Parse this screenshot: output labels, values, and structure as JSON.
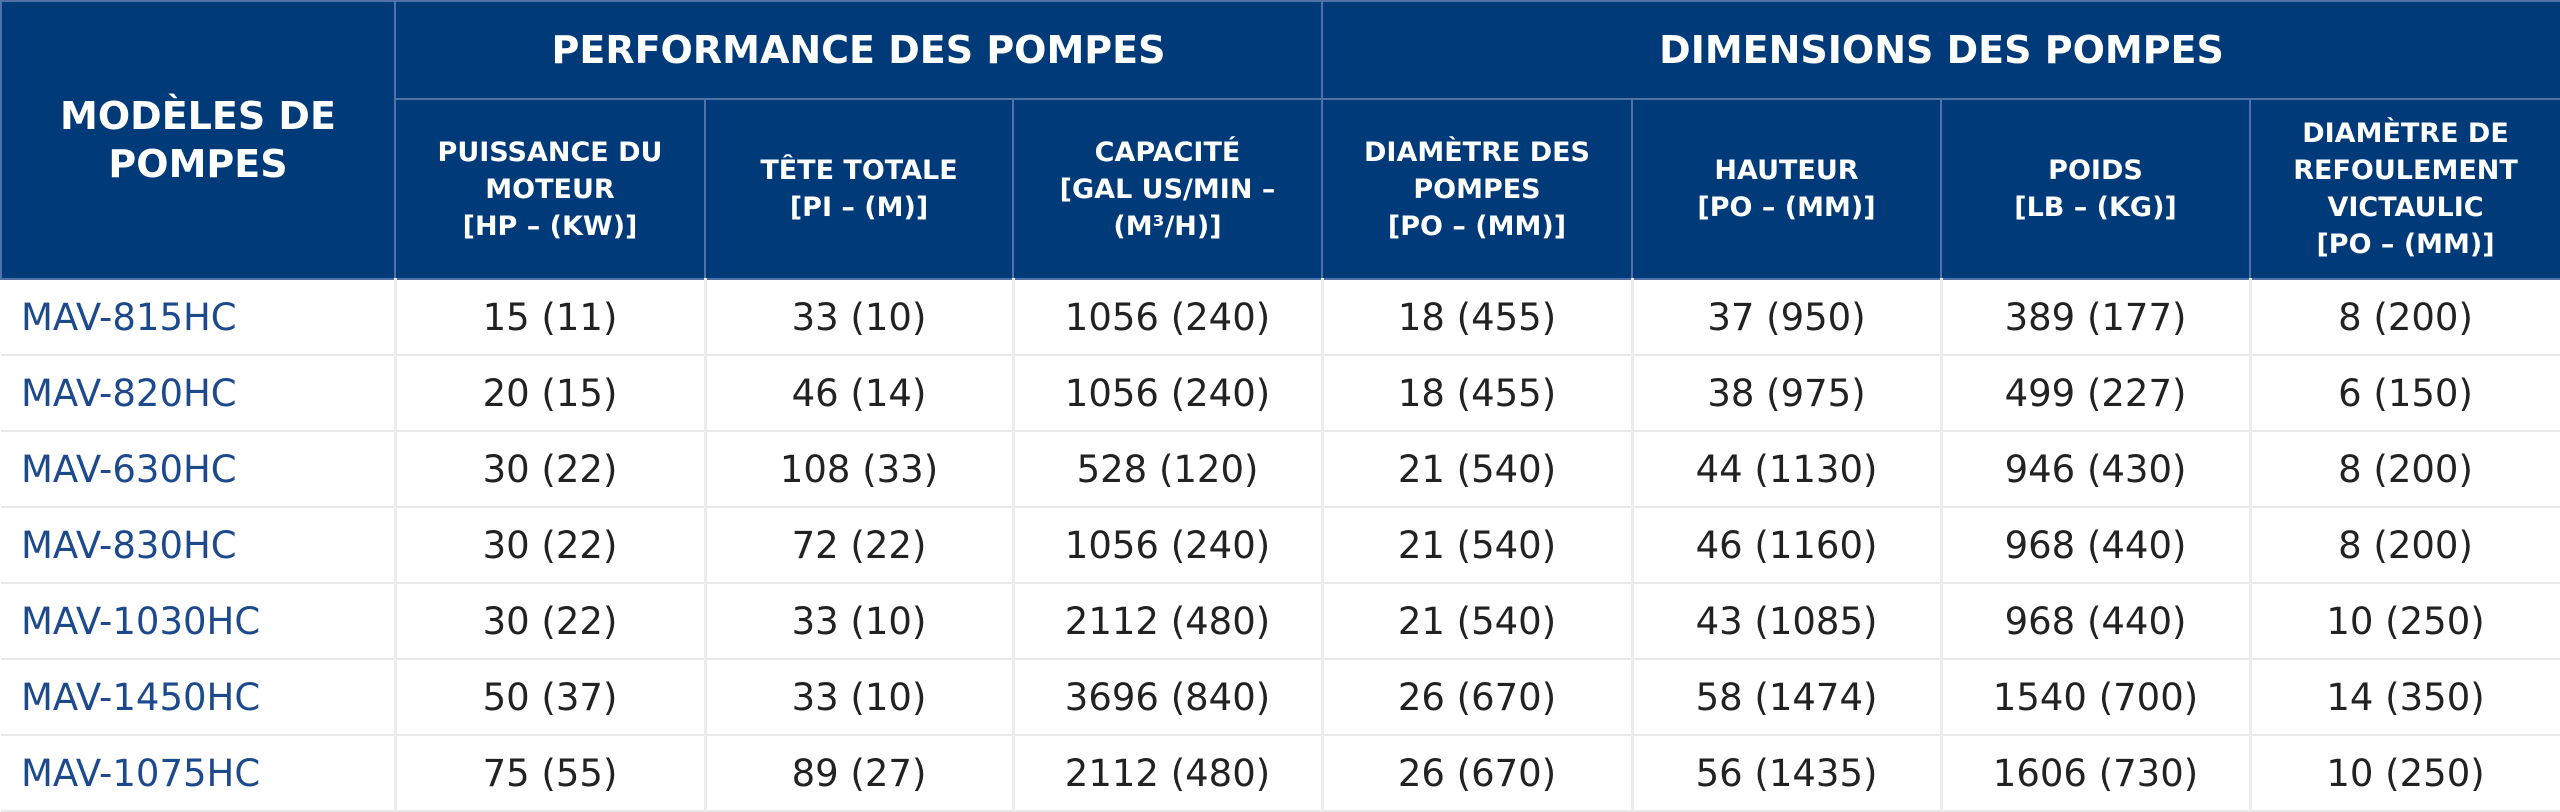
{
  "header": {
    "model_column": [
      "MODÈLES DE",
      "POMPES"
    ],
    "groups": [
      "PERFORMANCE DES POMPES",
      "DIMENSIONS DES POMPES"
    ],
    "columns": [
      [
        "PUISSANCE DU",
        "MOTEUR",
        "[HP – (KW)]"
      ],
      [
        "TÊTE TOTALE",
        "[PI – (M)]"
      ],
      [
        "CAPACITÉ",
        "[GAL US/MIN –",
        "(M³/H)]"
      ],
      [
        "DIAMÈTRE DES",
        "POMPES",
        "[PO – (MM)]"
      ],
      [
        "HAUTEUR",
        "[PO – (MM)]"
      ],
      [
        "POIDS",
        "[LB – (KG)]"
      ],
      [
        "DIAMÈTRE DE",
        "REFOULEMENT",
        "VICTAULIC",
        "[PO – (MM)]"
      ]
    ]
  },
  "table": {
    "rows": [
      [
        "MAV-815HC",
        "15 (11)",
        "33 (10)",
        "1056 (240)",
        "18 (455)",
        "37 (950)",
        "389 (177)",
        "8 (200)"
      ],
      [
        "MAV-820HC",
        "20 (15)",
        "46 (14)",
        "1056 (240)",
        "18 (455)",
        "38 (975)",
        "499 (227)",
        "6 (150)"
      ],
      [
        "MAV-630HC",
        "30 (22)",
        "108 (33)",
        "528 (120)",
        "21 (540)",
        "44 (1130)",
        "946 (430)",
        "8 (200)"
      ],
      [
        "MAV-830HC",
        "30 (22)",
        "72 (22)",
        "1056 (240)",
        "21 (540)",
        "46 (1160)",
        "968 (440)",
        "8 (200)"
      ],
      [
        "MAV-1030HC",
        "30 (22)",
        "33 (10)",
        "2112 (480)",
        "21 (540)",
        "43 (1085)",
        "968 (440)",
        "10 (250)"
      ],
      [
        "MAV-1450HC",
        "50 (37)",
        "33 (10)",
        "3696 (840)",
        "26 (670)",
        "58 (1474)",
        "1540 (700)",
        "14 (350)"
      ],
      [
        "MAV-1075HC",
        "75 (55)",
        "89 (27)",
        "2112 (480)",
        "26 (670)",
        "56 (1435)",
        "1606 (730)",
        "10 (250)"
      ]
    ]
  }
}
